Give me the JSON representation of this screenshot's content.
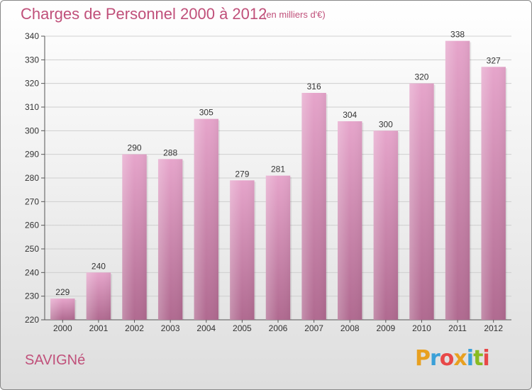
{
  "header": {
    "title": "Charges de Personnel 2000 à 2012",
    "subtitle": "(en milliers d'€)"
  },
  "footer": {
    "city": "SAVIGNé",
    "logo": {
      "text": "Proxiti",
      "letter_colors": [
        "#e8a020",
        "#3aa0d8",
        "#e84848",
        "#e8a020",
        "#3aa0d8",
        "#88bb22",
        "#e84848"
      ]
    }
  },
  "colors": {
    "bar_top": "#e6a5cb",
    "bar_bottom": "#b06a90",
    "text_accent": "#c0507a",
    "grid": "#cfcfcf"
  },
  "chart_data": {
    "type": "bar",
    "categories": [
      "2000",
      "2001",
      "2002",
      "2003",
      "2004",
      "2005",
      "2006",
      "2007",
      "2008",
      "2009",
      "2010",
      "2011",
      "2012"
    ],
    "values": [
      229,
      240,
      290,
      288,
      305,
      279,
      281,
      316,
      304,
      300,
      320,
      338,
      327
    ],
    "ylim": [
      220,
      340
    ],
    "yticks": [
      220,
      230,
      240,
      250,
      260,
      270,
      280,
      290,
      300,
      310,
      320,
      330,
      340
    ],
    "grid": true,
    "legend": "none"
  }
}
